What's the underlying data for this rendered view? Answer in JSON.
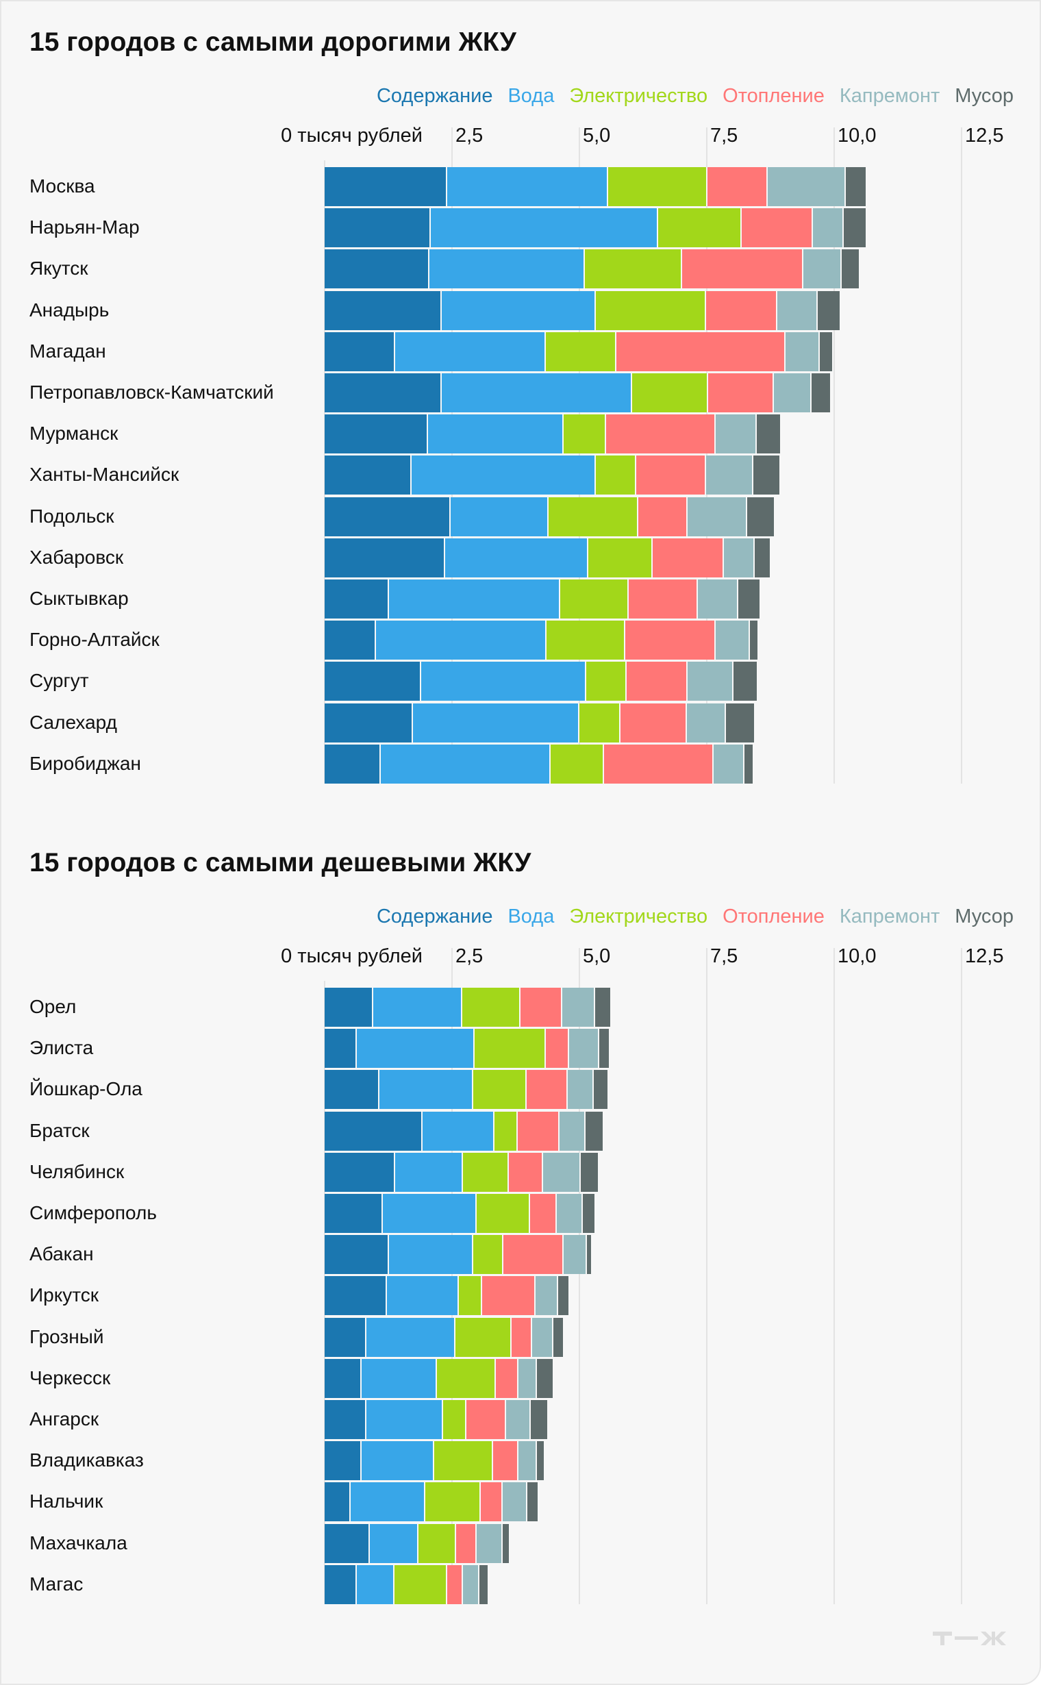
{
  "colors": {
    "Содержание": "#1b77b0",
    "Вода": "#38a6e8",
    "Электричество": "#a2d71a",
    "Отопление": "#ff7676",
    "Капремонт": "#95babf",
    "Мусор": "#5e6b6b"
  },
  "logo": "Т—Ж",
  "chart_data": [
    {
      "type": "bar",
      "orientation": "horizontal",
      "stacked": true,
      "title": "15 городов с самыми дорогими ЖКУ",
      "legend_position": "top-right",
      "xlim": [
        0,
        12.5
      ],
      "grid": true,
      "xticks": [
        "0 тысяч рублей",
        "2,5",
        "5,0",
        "7,5",
        "10,0",
        "12,5"
      ],
      "categories": [
        "Москва",
        "Нарьян-Мар",
        "Якутск",
        "Анадырь",
        "Магадан",
        "Петропавловск-Камчатский",
        "Мурманск",
        "Ханты-Мансийск",
        "Подольск",
        "Хабаровск",
        "Сыктывкар",
        "Горно-Алтайск",
        "Сургут",
        "Салехард",
        "Биробиджан"
      ],
      "series": [
        {
          "name": "Содержание",
          "values": [
            2.41,
            2.09,
            2.05,
            2.3,
            1.39,
            2.3,
            2.03,
            1.71,
            2.47,
            2.36,
            1.27,
            1.01,
            1.9,
            1.73,
            1.1
          ]
        },
        {
          "name": "Вода",
          "values": [
            3.16,
            4.45,
            3.06,
            3.02,
            2.95,
            3.73,
            2.66,
            3.61,
            1.92,
            2.81,
            3.35,
            3.35,
            3.23,
            3.27,
            3.33
          ]
        },
        {
          "name": "Электричество",
          "values": [
            1.94,
            1.65,
            1.9,
            2.17,
            1.39,
            1.5,
            0.84,
            0.8,
            1.77,
            1.27,
            1.35,
            1.54,
            0.8,
            0.8,
            1.05
          ]
        },
        {
          "name": "Отопление",
          "values": [
            1.18,
            1.39,
            2.38,
            1.39,
            3.31,
            1.29,
            2.15,
            1.37,
            0.97,
            1.39,
            1.35,
            1.77,
            1.2,
            1.31,
            2.15
          ]
        },
        {
          "name": "Капремонт",
          "values": [
            1.54,
            0.61,
            0.76,
            0.8,
            0.68,
            0.74,
            0.8,
            0.93,
            1.16,
            0.61,
            0.8,
            0.68,
            0.89,
            0.76,
            0.61
          ]
        },
        {
          "name": "Мусор",
          "values": [
            0.42,
            0.46,
            0.36,
            0.46,
            0.27,
            0.38,
            0.49,
            0.53,
            0.55,
            0.32,
            0.44,
            0.17,
            0.49,
            0.59,
            0.19
          ]
        }
      ]
    },
    {
      "type": "bar",
      "orientation": "horizontal",
      "stacked": true,
      "title": "15 городов с самыми дешевыми ЖКУ",
      "legend_position": "top-right",
      "xlim": [
        0,
        12.5
      ],
      "grid": true,
      "xticks": [
        "0 тысяч рублей",
        "2,5",
        "5,0",
        "7,5",
        "10,0",
        "12,5"
      ],
      "categories": [
        "Орел",
        "Элиста",
        "Йошкар-Ола",
        "Братск",
        "Челябинск",
        "Симферополь",
        "Абакан",
        "Иркутск",
        "Грозный",
        "Черкесск",
        "Ангарск",
        "Владикавказ",
        "Нальчик",
        "Махачкала",
        "Магас"
      ],
      "series": [
        {
          "name": "Содержание",
          "values": [
            0.95,
            0.63,
            1.08,
            1.92,
            1.39,
            1.14,
            1.27,
            1.22,
            0.82,
            0.72,
            0.82,
            0.72,
            0.51,
            0.89,
            0.63
          ]
        },
        {
          "name": "Вода",
          "values": [
            1.75,
            2.32,
            1.84,
            1.41,
            1.33,
            1.84,
            1.65,
            1.41,
            1.75,
            1.48,
            1.5,
            1.43,
            1.46,
            0.95,
            0.74
          ]
        },
        {
          "name": "Электричество",
          "values": [
            1.14,
            1.39,
            1.05,
            0.46,
            0.89,
            1.05,
            0.59,
            0.46,
            1.1,
            1.16,
            0.46,
            1.16,
            1.1,
            0.74,
            1.03
          ]
        },
        {
          "name": "Отопление",
          "values": [
            0.82,
            0.46,
            0.8,
            0.82,
            0.68,
            0.53,
            1.18,
            1.05,
            0.4,
            0.44,
            0.78,
            0.49,
            0.42,
            0.4,
            0.32
          ]
        },
        {
          "name": "Капремонт",
          "values": [
            0.65,
            0.59,
            0.51,
            0.51,
            0.74,
            0.51,
            0.46,
            0.44,
            0.42,
            0.36,
            0.49,
            0.36,
            0.49,
            0.51,
            0.32
          ]
        },
        {
          "name": "Мусор",
          "values": [
            0.32,
            0.21,
            0.3,
            0.36,
            0.36,
            0.25,
            0.11,
            0.23,
            0.21,
            0.34,
            0.34,
            0.17,
            0.23,
            0.15,
            0.19
          ]
        }
      ]
    }
  ]
}
